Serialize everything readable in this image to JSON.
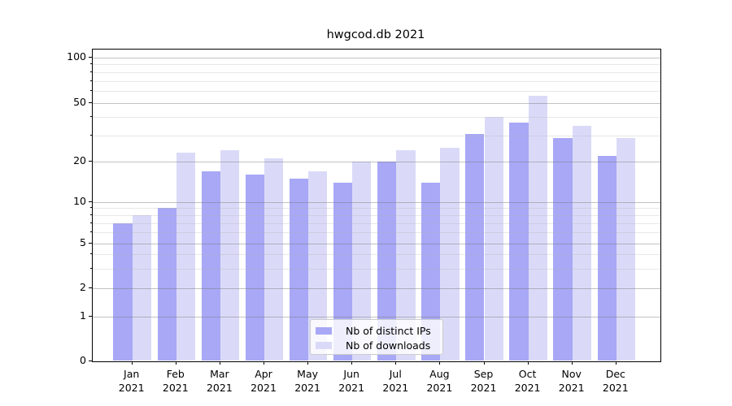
{
  "title": "hwgcod.db 2021",
  "chart_data": {
    "type": "bar",
    "categories": [
      "Jan 2021",
      "Feb 2021",
      "Mar 2021",
      "Apr 2021",
      "May 2021",
      "Jun 2021",
      "Jul 2021",
      "Aug 2021",
      "Sep 2021",
      "Oct 2021",
      "Nov 2021",
      "Dec 2021"
    ],
    "series": [
      {
        "name": "Nb of distinct IPs",
        "color": "#a8a8f6",
        "values": [
          7,
          9,
          17,
          16,
          15,
          14,
          20,
          14,
          31,
          37,
          29,
          22
        ]
      },
      {
        "name": "Nb of downloads",
        "color": "#dadaf8",
        "values": [
          8,
          23,
          24,
          21,
          17,
          20,
          24,
          25,
          40,
          56,
          35,
          29
        ]
      }
    ],
    "yscale": "symlog",
    "yticks": [
      100,
      50,
      20,
      10,
      5,
      2,
      1,
      0
    ],
    "ytick_labels": [
      "100",
      "50",
      "20",
      "10",
      "5",
      "2",
      "1",
      "0"
    ],
    "ylim": [
      0,
      114
    ],
    "grid": true,
    "legend_position": "inside lower center"
  },
  "colors": {
    "background": "#ffffff",
    "spine": "#000000",
    "text": "#000000",
    "grid_major": "#c6c6c6",
    "grid_minor": "#e7e7e7",
    "legend_border": "#cccccc"
  }
}
